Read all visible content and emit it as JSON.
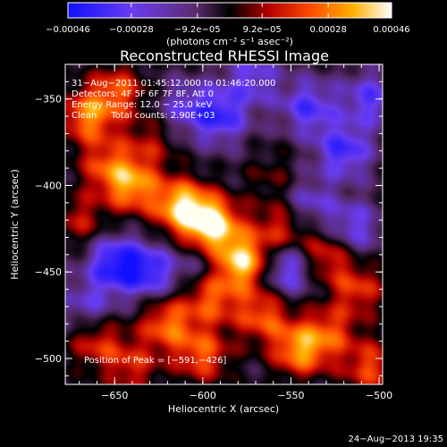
{
  "chart_data": {
    "type": "heatmap",
    "title": "Reconstructed RHESSI Image",
    "xlabel": "Heliocentric X (arcsec)",
    "ylabel": "Heliocentric Y (arcsec)",
    "xlim": [
      -678,
      -498
    ],
    "ylim": [
      -515,
      -330
    ],
    "x_ticks": [
      -650,
      -600,
      -550,
      -500
    ],
    "y_ticks": [
      -350,
      -400,
      -450,
      -500
    ],
    "x_tick_labels": [
      "−650",
      "−600",
      "−550",
      "−500"
    ],
    "y_tick_labels": [
      "−350",
      "−400",
      "−450",
      "−500"
    ],
    "colorbar": {
      "min": -0.00046,
      "max": 0.00046,
      "ticks": [
        -0.00046,
        -0.00028,
        -9.2e-05,
        9.2e-05,
        0.00028,
        0.00046
      ],
      "tick_labels": [
        "−0.00046",
        "−0.00028",
        "−9.2e−05",
        "9.2e−05",
        "0.00028",
        "0.00046"
      ],
      "unit_label": "(photons cm⁻² s⁻¹ asec⁻²)"
    },
    "annotations": {
      "time": "31−Aug−2011 01:45:12.000 to 01:46:20.000",
      "detectors": "Detectors: 4F 5F 6F 7F 8F, Att 0",
      "energy": "Energy Range: 12.0 − 25.0 keV",
      "method": "Clean     Total counts: 2.90E+03",
      "peak": "Position of Peak = [−591,−426]"
    },
    "peak_position": [
      -591,
      -426
    ],
    "blobs": [
      {
        "x": -595,
        "y": -423,
        "v": 1.0
      },
      {
        "x": -612,
        "y": -412,
        "v": 0.85
      },
      {
        "x": -578,
        "y": -444,
        "v": 0.9
      },
      {
        "x": -640,
        "y": -400,
        "v": 0.7
      },
      {
        "x": -655,
        "y": -388,
        "v": 0.45
      },
      {
        "x": -665,
        "y": -360,
        "v": 0.65
      },
      {
        "x": -648,
        "y": -345,
        "v": 0.5
      },
      {
        "x": -670,
        "y": -420,
        "v": 0.35
      },
      {
        "x": -566,
        "y": -475,
        "v": 0.55
      },
      {
        "x": -545,
        "y": -495,
        "v": 0.7
      },
      {
        "x": -528,
        "y": -485,
        "v": 0.45
      },
      {
        "x": -505,
        "y": -505,
        "v": 0.5
      },
      {
        "x": -620,
        "y": -480,
        "v": 0.6
      },
      {
        "x": -600,
        "y": -498,
        "v": 0.55
      },
      {
        "x": -660,
        "y": -490,
        "v": 0.45
      },
      {
        "x": -640,
        "y": -505,
        "v": 0.4
      },
      {
        "x": -556,
        "y": -425,
        "v": 0.45
      },
      {
        "x": -530,
        "y": -440,
        "v": 0.5
      },
      {
        "x": -512,
        "y": -460,
        "v": 0.45
      },
      {
        "x": -595,
        "y": -465,
        "v": 0.55
      },
      {
        "x": -630,
        "y": -375,
        "v": 0.3
      },
      {
        "x": -560,
        "y": -395,
        "v": 0.2
      },
      {
        "x": -650,
        "y": -445,
        "v": -0.65
      },
      {
        "x": -630,
        "y": -450,
        "v": -0.55
      },
      {
        "x": -590,
        "y": -360,
        "v": -0.55
      },
      {
        "x": -540,
        "y": -355,
        "v": -0.5
      },
      {
        "x": -520,
        "y": -380,
        "v": -0.55
      },
      {
        "x": -552,
        "y": -448,
        "v": -0.55
      },
      {
        "x": -515,
        "y": -425,
        "v": -0.45
      },
      {
        "x": -572,
        "y": -338,
        "v": -0.4
      },
      {
        "x": -665,
        "y": -470,
        "v": -0.35
      },
      {
        "x": -610,
        "y": -355,
        "v": -0.35
      },
      {
        "x": -600,
        "y": -445,
        "v": -0.25
      },
      {
        "x": -505,
        "y": -350,
        "v": -0.45
      },
      {
        "x": -540,
        "y": -410,
        "v": -0.35
      }
    ]
  },
  "footer": {
    "date": "24−Aug−2013 19:35"
  }
}
